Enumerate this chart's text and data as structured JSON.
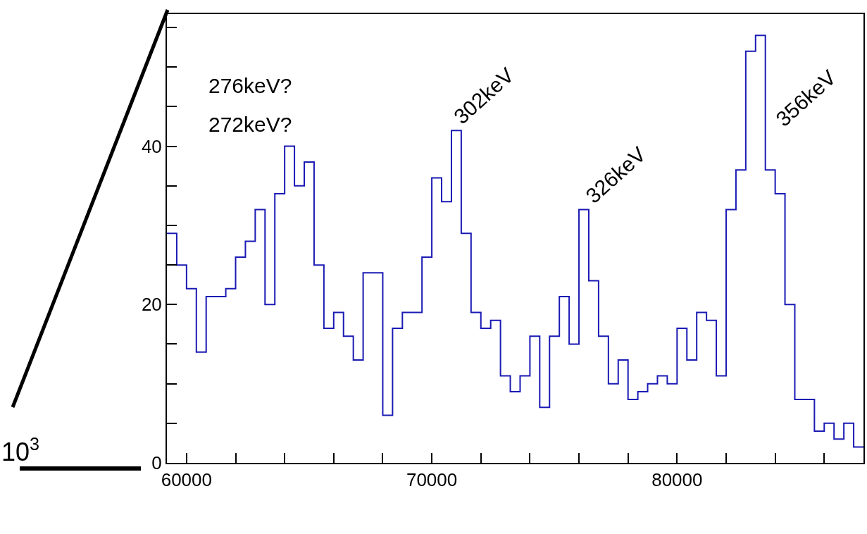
{
  "chart_data": {
    "type": "histogram",
    "color": "#1a1ab4",
    "bins": [
      59200,
      59600,
      60000,
      60400,
      60800,
      61200,
      61600,
      62000,
      62400,
      62800,
      63200,
      63600,
      64000,
      64400,
      64800,
      65200,
      65600,
      66000,
      66400,
      66800,
      67200,
      67600,
      68000,
      68400,
      68800,
      69200,
      69600,
      70000,
      70400,
      70800,
      71200,
      71600,
      72000,
      72400,
      72800,
      73200,
      73600,
      74000,
      74400,
      74800,
      75200,
      75600,
      76000,
      76400,
      76800,
      77200,
      77600,
      78000,
      78400,
      78800,
      79200,
      79600,
      80000,
      80400,
      80800,
      81200,
      81600,
      82000,
      82400,
      82800,
      83200,
      83600,
      84000,
      84400,
      84800,
      85200,
      85600,
      86000,
      86400,
      86800,
      87200,
      87600
    ],
    "values": [
      29,
      25,
      22,
      14,
      21,
      21,
      22,
      26,
      28,
      32,
      20,
      34,
      40,
      35,
      38,
      25,
      17,
      19,
      16,
      13,
      24,
      24,
      6,
      17,
      19,
      19,
      26,
      36,
      33,
      42,
      29,
      19,
      17,
      18,
      11,
      9,
      11,
      16,
      7,
      16,
      21,
      15,
      32,
      23,
      16,
      10,
      13,
      8,
      9,
      10,
      11,
      10,
      17,
      13,
      19,
      18,
      11,
      32,
      37,
      52,
      54,
      37,
      34,
      20,
      8,
      8,
      4,
      5,
      3,
      5,
      2
    ],
    "xlim": [
      59200,
      87600
    ],
    "xticks": [
      60000,
      {
        "value": 62000,
        "label": null
      },
      {
        "value": 64000,
        "label": null
      },
      {
        "value": 66000,
        "label": null
      },
      {
        "value": 68000,
        "label": null
      },
      70000,
      {
        "value": 72000,
        "label": null
      },
      {
        "value": 74000,
        "label": null
      },
      {
        "value": 76000,
        "label": null
      },
      {
        "value": 78000,
        "label": null
      },
      80000,
      {
        "value": 82000,
        "label": null
      },
      {
        "value": 84000,
        "label": null
      },
      {
        "value": 86000,
        "label": null
      }
    ],
    "ylim": [
      0,
      56.7
    ],
    "yticks": [
      0,
      {
        "value": 5,
        "label": null
      },
      {
        "value": 10,
        "label": null
      },
      {
        "value": 15,
        "label": null
      },
      20,
      {
        "value": 25,
        "label": null
      },
      {
        "value": 30,
        "label": null
      },
      {
        "value": 35,
        "label": null
      },
      40,
      {
        "value": 45,
        "label": null
      },
      {
        "value": 50,
        "label": null
      },
      {
        "value": 55,
        "label": null
      }
    ],
    "grid": false,
    "annotations": [
      "276keV?",
      "272keV?",
      "10$^{3}$",
      {
        "text": "302keV",
        "x": 70650,
        "y": 42
      },
      {
        "text": "326keV",
        "x": 76000,
        "y": 32
      },
      {
        "text": "356keV",
        "x": 83750,
        "y": 41.7
      }
    ]
  }
}
